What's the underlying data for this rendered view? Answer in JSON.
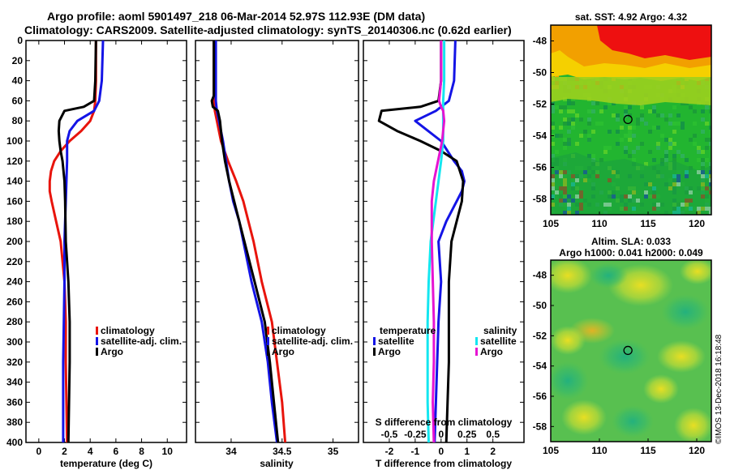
{
  "header": {
    "line1": "Argo profile: aoml 5901497_218 06-Mar-2014 52.97S 112.93E (DM data)",
    "line2": "Climatology: CARS2009. Satellite-adjusted climatology: synTS_20140306.nc (0.62d earlier)"
  },
  "sst_title": "sat. SST: 4.92 Argo: 4.32",
  "sla_title1": "Altim. SLA: 0.033",
  "sla_title2": "Argo h1000: 0.041 h2000: 0.049",
  "watermark": "©IMOS 13-Dec-2018 16:18:48",
  "colors": {
    "climatology": "#e8140c",
    "satellite": "#1414e6",
    "argo": "#000000",
    "cyan": "#14e6f0",
    "magenta": "#e614d2"
  },
  "chart_data": [
    {
      "type": "line",
      "id": "temperature",
      "xlabel": "temperature (deg C)",
      "ylabel": "depth",
      "xlim": [
        -1,
        11.5
      ],
      "ylim": [
        0,
        400
      ],
      "xticks": [
        0,
        2,
        4,
        6,
        8,
        10
      ],
      "xtick_labels": [
        "0",
        "2",
        "4",
        "6",
        "8",
        "10"
      ],
      "yticks": [
        0,
        20,
        40,
        60,
        80,
        100,
        120,
        140,
        160,
        180,
        200,
        220,
        240,
        260,
        280,
        300,
        320,
        340,
        360,
        380,
        400
      ],
      "legend": [
        "climatology",
        "satellite-adj. clim.",
        "Argo"
      ],
      "legend_position": "center-right",
      "series": [
        {
          "name": "climatology",
          "depth": [
            0,
            40,
            60,
            70,
            80,
            90,
            100,
            110,
            120,
            130,
            140,
            150,
            160,
            180,
            200,
            240,
            280,
            320,
            360,
            400
          ],
          "values": [
            4.45,
            4.45,
            4.4,
            4.3,
            4.0,
            3.3,
            2.4,
            1.7,
            1.2,
            0.95,
            0.85,
            0.85,
            1.0,
            1.35,
            1.7,
            2.0,
            2.1,
            2.1,
            2.15,
            2.2
          ]
        },
        {
          "name": "satellite-adj. clim.",
          "depth": [
            0,
            40,
            60,
            70,
            80,
            90,
            100,
            120,
            140,
            160,
            200,
            240,
            280,
            320,
            360,
            400
          ],
          "values": [
            5.0,
            4.9,
            4.7,
            4.3,
            3.0,
            2.4,
            2.2,
            2.2,
            2.15,
            2.1,
            2.0,
            2.0,
            1.95,
            1.9,
            1.9,
            1.9
          ]
        },
        {
          "name": "Argo",
          "depth": [
            0,
            40,
            60,
            66,
            70,
            80,
            90,
            100,
            110,
            120,
            140,
            160,
            200,
            240,
            280,
            320,
            360,
            400
          ],
          "values": [
            4.45,
            4.4,
            4.3,
            3.5,
            2.0,
            1.6,
            1.55,
            1.6,
            1.7,
            1.85,
            2.0,
            2.05,
            2.1,
            2.3,
            2.4,
            2.4,
            2.35,
            2.3
          ]
        }
      ]
    },
    {
      "type": "line",
      "id": "salinity",
      "xlabel": "salinity",
      "ylabel": "depth",
      "xlim": [
        33.65,
        35.25
      ],
      "ylim": [
        0,
        400
      ],
      "xticks": [
        34,
        34.5,
        35
      ],
      "xtick_labels": [
        "34",
        "34.5",
        "35"
      ],
      "legend": [
        "climatology",
        "satellite-adj. clim.",
        "Argo"
      ],
      "legend_position": "center-right",
      "series": [
        {
          "name": "climatology",
          "depth": [
            0,
            40,
            60,
            70,
            80,
            100,
            120,
            140,
            160,
            180,
            200,
            240,
            280,
            320,
            360,
            400
          ],
          "values": [
            33.83,
            33.83,
            33.83,
            33.84,
            33.86,
            33.9,
            33.97,
            34.05,
            34.12,
            34.17,
            34.22,
            34.3,
            34.4,
            34.45,
            34.5,
            34.53
          ]
        },
        {
          "name": "satellite-adj. clim.",
          "depth": [
            0,
            40,
            60,
            70,
            80,
            100,
            120,
            140,
            160,
            180,
            200,
            240,
            280,
            320,
            360,
            400
          ],
          "values": [
            33.85,
            33.85,
            33.85,
            33.86,
            33.88,
            33.92,
            33.95,
            33.98,
            34.02,
            34.08,
            34.12,
            34.2,
            34.3,
            34.36,
            34.4,
            34.45
          ]
        },
        {
          "name": "Argo",
          "depth": [
            0,
            40,
            55,
            60,
            66,
            70,
            80,
            100,
            120,
            140,
            160,
            180,
            200,
            240,
            280,
            320,
            360,
            400
          ],
          "values": [
            33.83,
            33.83,
            33.83,
            33.81,
            33.82,
            33.87,
            33.89,
            33.91,
            33.94,
            33.98,
            34.03,
            34.08,
            34.13,
            34.23,
            34.33,
            34.38,
            34.42,
            34.46
          ]
        }
      ]
    },
    {
      "type": "line",
      "id": "difference",
      "xlabel": "T difference from climatology",
      "xlabel_secondary": "S difference from climatology",
      "xlim": [
        -3,
        3.2
      ],
      "ylim": [
        0,
        400
      ],
      "xticks": [
        -2,
        -1,
        0,
        1,
        2
      ],
      "xtick_labels": [
        "-2",
        "-1",
        "0",
        "1",
        "2"
      ],
      "s_xlim": [
        -0.75,
        0.8
      ],
      "s_xticks": [
        -0.5,
        -0.25,
        0,
        0.25,
        0.5
      ],
      "s_xtick_labels": [
        "-0.5",
        "-0.25",
        "0",
        "0.25",
        "0.5"
      ],
      "legend": [
        {
          "group": "temperature",
          "items": [
            "satellite",
            "Argo"
          ]
        },
        {
          "group": "salinity",
          "items": [
            "satellite",
            "Argo"
          ]
        }
      ],
      "series": [
        {
          "name": "temperature satellite",
          "depth": [
            0,
            40,
            60,
            70,
            80,
            90,
            100,
            120,
            130,
            140,
            150,
            160,
            180,
            200,
            240,
            280,
            320,
            360,
            400
          ],
          "values": [
            0.55,
            0.5,
            0.3,
            -0.2,
            -1.0,
            -0.5,
            0.0,
            0.5,
            0.8,
            0.9,
            0.8,
            0.6,
            0.2,
            -0.1,
            0.0,
            -0.1,
            -0.15,
            -0.2,
            -0.25
          ]
        },
        {
          "name": "temperature Argo",
          "depth": [
            0,
            40,
            60,
            66,
            70,
            80,
            90,
            100,
            110,
            120,
            140,
            160,
            200,
            240,
            280,
            320,
            360,
            400
          ],
          "values": [
            0.0,
            0.0,
            -0.1,
            -0.8,
            -2.3,
            -2.4,
            -1.7,
            -0.8,
            0.0,
            0.6,
            0.85,
            0.8,
            0.4,
            0.3,
            0.3,
            0.3,
            0.25,
            0.2
          ]
        },
        {
          "name": "salinity satellite",
          "depth": [
            0,
            40,
            60,
            80,
            100,
            120,
            160,
            200,
            240,
            280,
            320,
            360,
            400
          ],
          "values": [
            0.03,
            0.03,
            0.02,
            0.02,
            0.02,
            0.0,
            -0.05,
            -0.1,
            -0.12,
            -0.13,
            -0.13,
            -0.13,
            -0.12
          ]
        },
        {
          "name": "salinity Argo",
          "depth": [
            0,
            40,
            60,
            66,
            70,
            80,
            100,
            120,
            140,
            160,
            200,
            240,
            280,
            320,
            360,
            400
          ],
          "values": [
            0.0,
            0.0,
            -0.02,
            0.0,
            0.02,
            0.03,
            0.01,
            -0.03,
            -0.07,
            -0.09,
            -0.09,
            -0.08,
            -0.07,
            -0.07,
            -0.08,
            -0.07
          ]
        }
      ]
    },
    {
      "type": "heatmap",
      "id": "sst_map",
      "title": "sat. SST: 4.92 Argo: 4.32",
      "xlim": [
        105,
        121.5
      ],
      "ylim": [
        -59,
        -47
      ],
      "xticks": [
        105,
        110,
        115,
        120
      ],
      "xtick_labels": [
        "105",
        "110",
        "115",
        "120"
      ],
      "yticks": [
        -48,
        -50,
        -52,
        -54,
        -56,
        -58
      ],
      "ytick_labels": [
        "-48",
        "-50",
        "-52",
        "-54",
        "-56",
        "-58"
      ],
      "marker": {
        "lon": 112.93,
        "lat": -52.97
      }
    },
    {
      "type": "heatmap",
      "id": "sla_map",
      "title": "Altim. SLA: 0.033",
      "subtitle": "Argo h1000: 0.041 h2000: 0.049",
      "xlim": [
        105,
        121.5
      ],
      "ylim": [
        -59,
        -47
      ],
      "xticks": [
        105,
        110,
        115,
        120
      ],
      "xtick_labels": [
        "105",
        "110",
        "115",
        "120"
      ],
      "yticks": [
        -48,
        -50,
        -52,
        -54,
        -56,
        -58
      ],
      "ytick_labels": [
        "-48",
        "-50",
        "-52",
        "-54",
        "-56",
        "-58"
      ],
      "marker": {
        "lon": 112.93,
        "lat": -52.97
      }
    }
  ]
}
